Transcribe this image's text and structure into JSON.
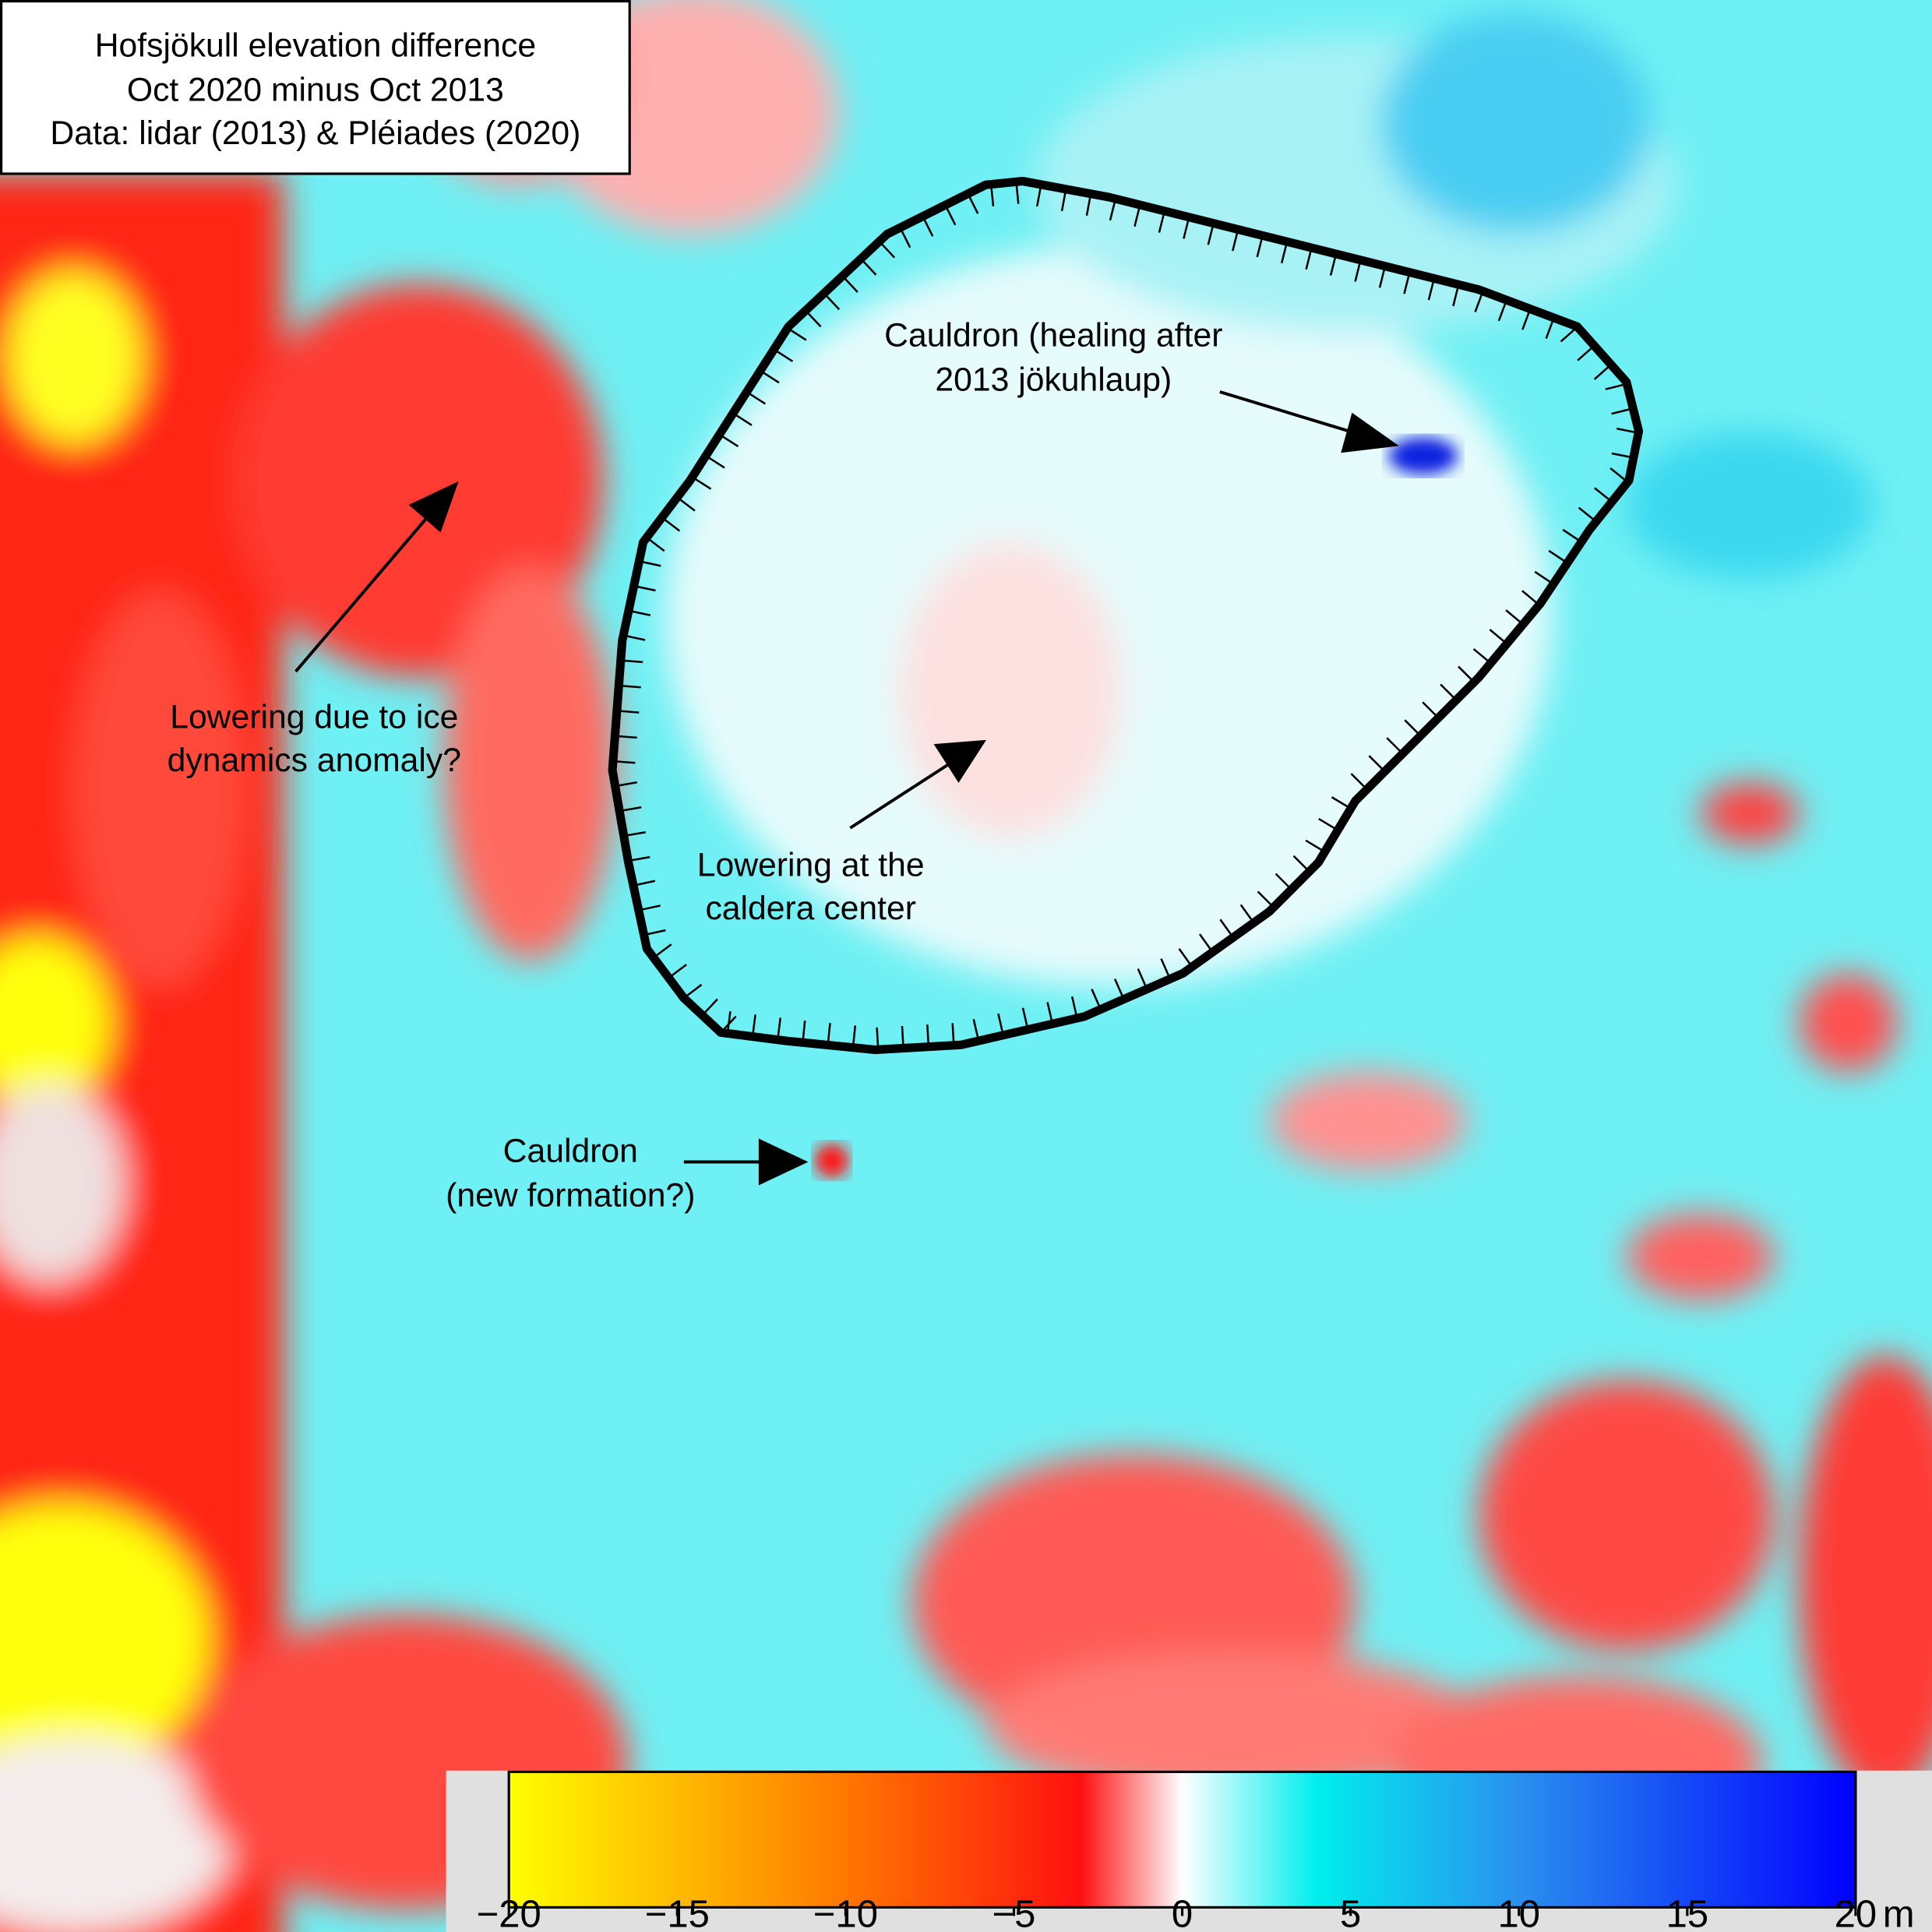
{
  "title_box": {
    "lines": [
      "Hofsjökull elevation difference",
      "Oct 2020 minus Oct 2013",
      "Data: lidar (2013) & Pléiades (2020)"
    ]
  },
  "annotations": [
    {
      "lines": [
        "Cauldron (healing after",
        "2013 jökuhlaup)"
      ]
    },
    {
      "lines": [
        "Lowering due to ice",
        "dynamics anomaly?"
      ]
    },
    {
      "lines": [
        "Lowering at the",
        "caldera center"
      ]
    },
    {
      "lines": [
        "Cauldron",
        "(new formation?)"
      ]
    }
  ],
  "colorbar": {
    "lim": [
      -20,
      20
    ],
    "ticks": [
      {
        "value": -20,
        "label": "−20"
      },
      {
        "value": -15,
        "label": "−15"
      },
      {
        "value": -10,
        "label": "−10"
      },
      {
        "value": -5,
        "label": "−5"
      },
      0,
      5,
      10,
      15,
      20
    ],
    "unit": "m",
    "colormap": [
      {
        "value": -20,
        "color": "#ffff00"
      },
      {
        "value": -10,
        "color": "#ff7700"
      },
      {
        "value": -3,
        "color": "#ff1010"
      },
      {
        "value": 0,
        "color": "#ffffff"
      },
      {
        "value": 4,
        "color": "#00eeee"
      },
      {
        "value": 10,
        "color": "#2a90ee"
      },
      {
        "value": 20,
        "color": "#0000ff"
      }
    ]
  }
}
